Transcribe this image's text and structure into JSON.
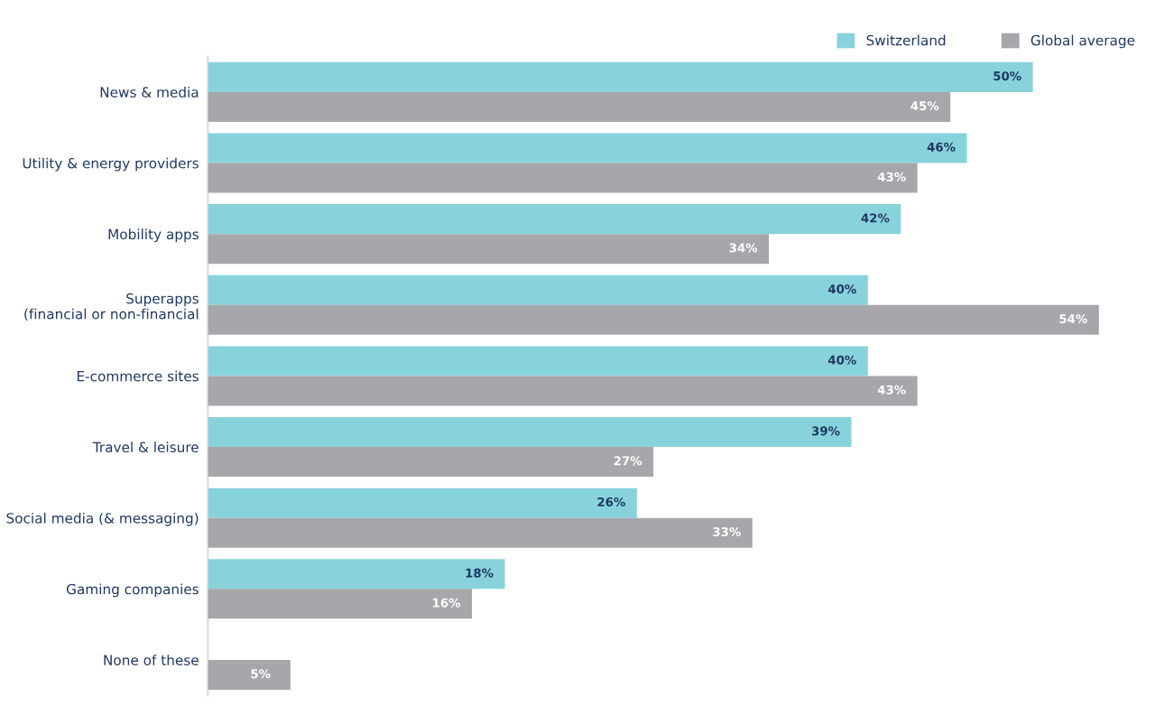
{
  "chart_data": {
    "type": "bar",
    "orientation": "horizontal",
    "categories": [
      "News & media",
      "Utility & energy providers",
      "Mobility apps",
      "Superapps\n(financial or non-financial",
      "E-commerce sites",
      "Travel & leisure",
      "Social media (& messaging)",
      "Gaming companies",
      "None of these"
    ],
    "series": [
      {
        "name": "Switzerland",
        "color": "#88d3db",
        "values": [
          50,
          46,
          42,
          40,
          40,
          39,
          26,
          18,
          null
        ],
        "value_labels": [
          "50%",
          "46%",
          "42%",
          "40%",
          "40%",
          "39%",
          "26%",
          "18%",
          null
        ]
      },
      {
        "name": "Global average",
        "color": "#a7a7ab",
        "values": [
          45,
          43,
          34,
          54,
          43,
          27,
          33,
          16,
          5
        ],
        "value_labels": [
          "45%",
          "43%",
          "34%",
          "54%",
          "43%",
          "27%",
          "33%",
          "16%",
          "5%"
        ]
      }
    ],
    "tick_labels": "y",
    "legend": "top right"
  }
}
